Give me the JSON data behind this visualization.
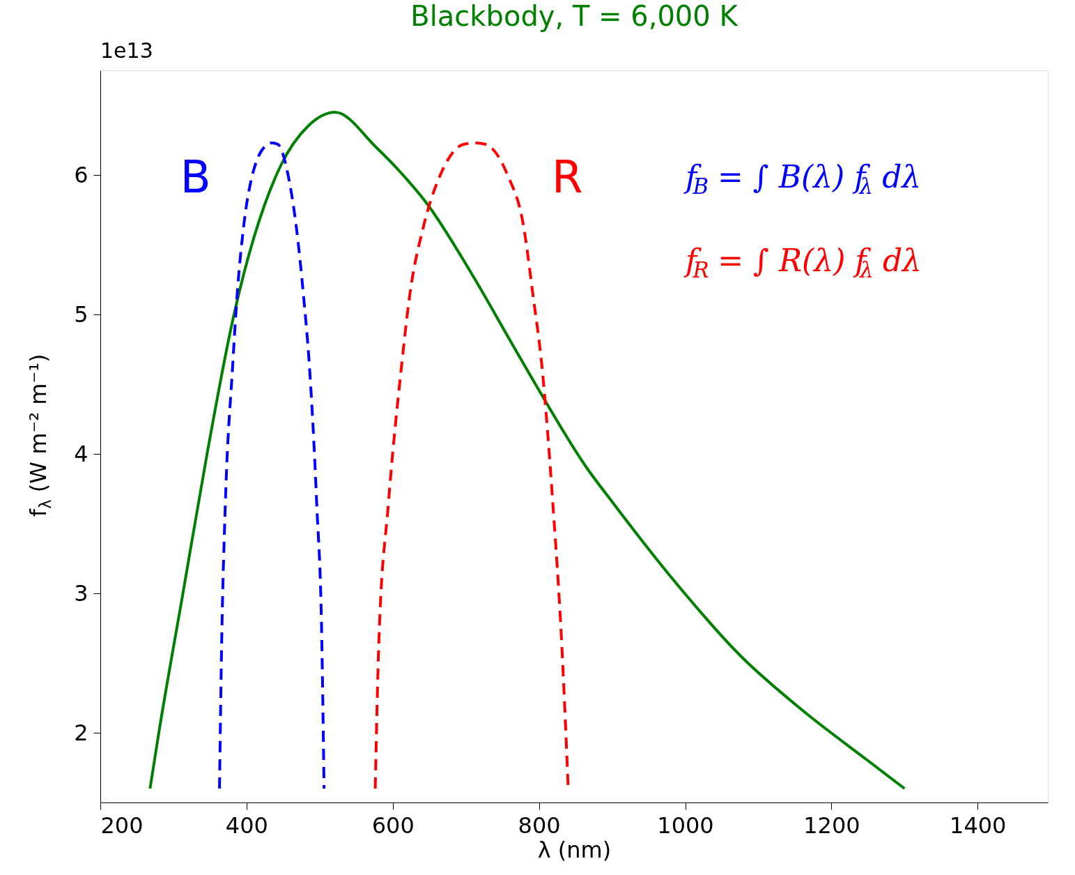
{
  "chart_data": {
    "type": "line",
    "title": "Blackbody, T = 6,000 K",
    "xlabel": "λ (nm)",
    "ylabel": "f$_{λ}$ (W m⁻² m⁻¹)",
    "annotations": [
      "1e13",
      "f$_{B}$ = ∫ B(λ) f$_{λ}$ dλ",
      "f$_{R}$ = ∫ R(λ) f$_{λ}$ dλ"
    ],
    "xlim": [
      200,
      1496
    ],
    "ylim": [
      1.5,
      6.75
    ],
    "xticks": [
      200,
      400,
      600,
      800,
      1000,
      1200,
      1400
    ],
    "yticks": [
      2,
      3,
      4,
      5,
      6
    ],
    "grid": false,
    "legend": false,
    "series": [
      {
        "color": "#008000",
        "line_style": "solid",
        "x": [
          268,
          280,
          313,
          346,
          382,
          447,
          484,
          521,
          577,
          614,
          646,
          707,
          762,
          794,
          864,
          901,
          988,
          1076,
          1163,
          1250,
          1300
        ],
        "values": [
          1.6,
          2.0,
          3.0,
          4.0,
          4.98,
          6.07,
          6.35,
          6.45,
          6.2,
          6.0,
          5.8,
          5.3,
          4.8,
          4.51,
          3.91,
          3.65,
          3.07,
          2.55,
          2.15,
          1.8,
          1.6
        ]
      },
      {
        "name": "B",
        "color": "#0000ff",
        "line_style": "dashed",
        "x": [
          363,
          366,
          371,
          381,
          387,
          396,
          408,
          429,
          435,
          443,
          456,
          468,
          478,
          486,
          496,
          503,
          506
        ],
        "values": [
          1.6,
          2.65,
          3.64,
          4.63,
          5.13,
          5.63,
          6.0,
          6.22,
          6.23,
          6.22,
          6.02,
          5.63,
          5.13,
          4.63,
          3.64,
          2.65,
          1.6
        ]
      },
      {
        "name": "R",
        "color": "#ff0000",
        "line_style": "dashed",
        "x": [
          576,
          581,
          594,
          612,
          623,
          642,
          665,
          697,
          713,
          727,
          757,
          779,
          792,
          804,
          819,
          831,
          840
        ],
        "values": [
          1.6,
          2.65,
          3.64,
          4.63,
          5.13,
          5.63,
          6.0,
          6.22,
          6.23,
          6.22,
          6.0,
          5.63,
          5.13,
          4.63,
          3.64,
          2.65,
          1.6
        ]
      }
    ]
  }
}
